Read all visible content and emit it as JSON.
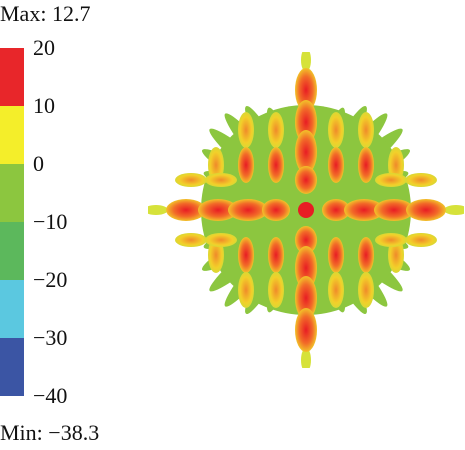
{
  "chart_data": {
    "type": "heatmap",
    "title": "",
    "max_label": "Max: 12.7",
    "min_label": "Min: −38.3",
    "colorbar": {
      "ticks": [
        "20",
        "10",
        "0",
        "−10",
        "−20",
        "−30",
        "−40"
      ],
      "range": [
        -40,
        20
      ],
      "bands": [
        {
          "from": 10,
          "to": 20,
          "color": "#e8262a"
        },
        {
          "from": 0,
          "to": 10,
          "color": "#f4ee2a"
        },
        {
          "from": -10,
          "to": 0,
          "color": "#8cc63f"
        },
        {
          "from": -20,
          "to": -10,
          "color": "#5cb85c"
        },
        {
          "from": -30,
          "to": -20,
          "color": "#5bc8e0"
        },
        {
          "from": -40,
          "to": -30,
          "color": "#3b55a4"
        }
      ]
    },
    "pattern": {
      "description_colors": {
        "peak": "#e8262a",
        "mid": "#f4ee2a",
        "low": "#8cc63f"
      }
    }
  }
}
